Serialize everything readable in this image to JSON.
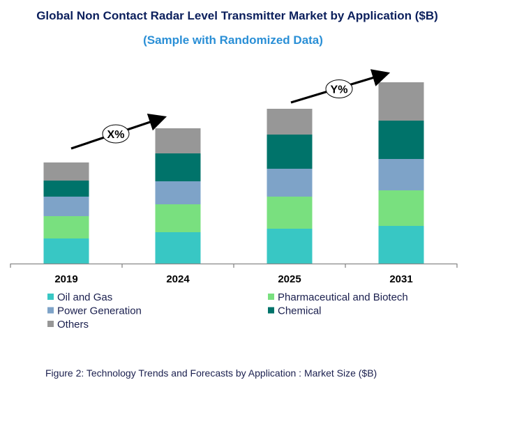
{
  "chart_data": {
    "type": "stacked-bar",
    "title": "Global Non Contact Radar Level Transmitter Market by Application ($B)",
    "subtitle": "(Sample with Randomized Data)",
    "caption": "Figure 2: Technology  Trends  and Forecasts by Application : Market Size ($B)",
    "categories": [
      "2019",
      "2024",
      "2025",
      "2031"
    ],
    "series": [
      {
        "name": "Oil and Gas",
        "color": "#38c7c4",
        "values": [
          3.6,
          4.5,
          5.0,
          5.4
        ]
      },
      {
        "name": "Pharmaceutical and Biotech",
        "color": "#79e07f",
        "values": [
          3.2,
          4.0,
          4.6,
          5.1
        ]
      },
      {
        "name": "Power Generation",
        "color": "#7ea3c8",
        "values": [
          2.8,
          3.3,
          4.0,
          4.5
        ]
      },
      {
        "name": "Chemical",
        "color": "#00736a",
        "values": [
          2.3,
          4.0,
          4.9,
          5.5
        ]
      },
      {
        "name": "Others",
        "color": "#979797",
        "values": [
          2.6,
          3.6,
          3.7,
          5.5
        ]
      }
    ],
    "ylim": [
      0,
      26
    ],
    "grid": false,
    "legend_position": "bottom",
    "annotations": [
      {
        "text": "X%",
        "from": "2019",
        "to": "2024"
      },
      {
        "text": "Y%",
        "from": "2025",
        "to": "2031"
      }
    ]
  }
}
